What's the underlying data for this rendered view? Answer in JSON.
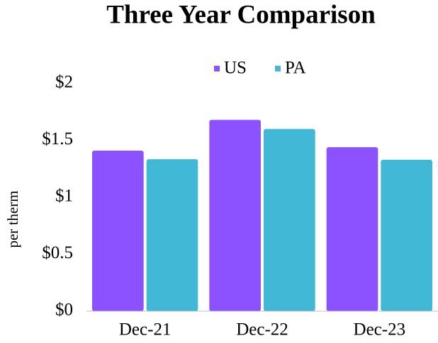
{
  "chart_data": {
    "type": "bar",
    "title": "Three Year Comparison",
    "y_label": "per therm",
    "categories": [
      "Dec-21",
      "Dec-22",
      "Dec-23"
    ],
    "series": [
      {
        "name": "US",
        "color": "#8c52ff",
        "values": [
          1.41,
          1.68,
          1.44
        ]
      },
      {
        "name": "PA",
        "color": "#40b8d6",
        "values": [
          1.335,
          1.6,
          1.33
        ]
      }
    ],
    "ylim": [
      0,
      2
    ],
    "yticks": [
      {
        "value": 0,
        "label": "$0"
      },
      {
        "value": 0.5,
        "label": "$0.5"
      },
      {
        "value": 1,
        "label": "$1"
      },
      {
        "value": 1.5,
        "label": "$1.5"
      },
      {
        "value": 2,
        "label": "$2"
      }
    ],
    "grid": false,
    "legend": "top"
  }
}
